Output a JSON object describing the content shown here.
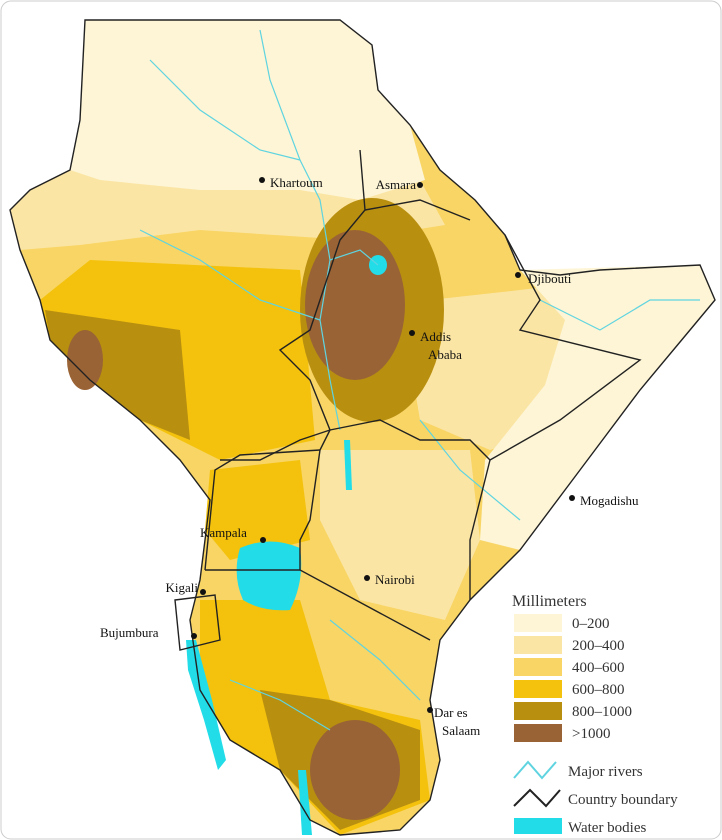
{
  "cities": [
    {
      "lines": [
        "Khartoum"
      ]
    },
    {
      "lines": [
        "Asmara"
      ]
    },
    {
      "lines": [
        "Djibouti"
      ]
    },
    {
      "lines": [
        "Addis",
        "Ababa"
      ]
    },
    {
      "lines": [
        "Mogadishu"
      ]
    },
    {
      "lines": [
        "Kampala"
      ]
    },
    {
      "lines": [
        "Nairobi"
      ]
    },
    {
      "lines": [
        "Kigali"
      ]
    },
    {
      "lines": [
        "Bujumbura"
      ]
    },
    {
      "lines": [
        "Dar es",
        "Salaam"
      ]
    }
  ],
  "legend": {
    "heading": "Millimeters",
    "classes": [
      {
        "label": "0–200",
        "color": "#fdf5d6"
      },
      {
        "label": "200–400",
        "color": "#fbe5a4"
      },
      {
        "label": "400–600",
        "color": "#f8d565"
      },
      {
        "label": "600–800",
        "color": "#f4c20c"
      },
      {
        "label": "800–1000",
        "color": "#b98f10"
      },
      {
        "label": ">1000",
        "color": "#9a6335"
      }
    ],
    "symbols": [
      {
        "label": "Major rivers"
      },
      {
        "label": "Country boundary"
      },
      {
        "label": "Water bodies"
      }
    ]
  }
}
